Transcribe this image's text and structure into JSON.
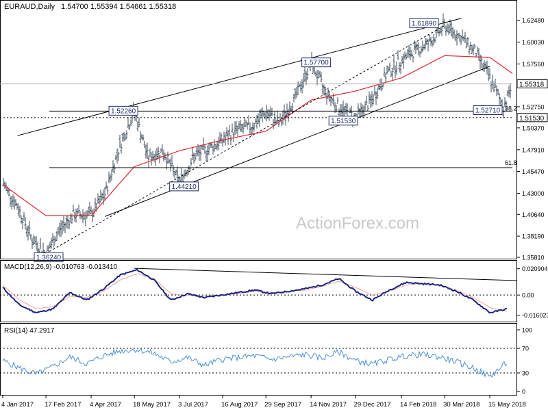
{
  "header": {
    "symbol": "EURAUD,Daily",
    "ohlc": "1.54700 1.55394 1.54661 1.55318"
  },
  "watermark": "ActionForex.com",
  "colors": {
    "bars": "#3b4b5b",
    "sma": "#e0262c",
    "macd": "#1a237e",
    "signal": "#f0a0a0",
    "rsi": "#4a8fd6",
    "trend": "#000000"
  },
  "chart_data": [
    {
      "type": "ohlc",
      "title": "EURAUD,Daily",
      "ylim": [
        1.3581,
        1.6368
      ],
      "y_ticks": [
        "1.62480",
        "1.60030",
        "1.57560",
        "1.52750",
        "1.50370",
        "1.47910",
        "1.45470",
        "1.43000",
        "1.40640",
        "1.38190",
        "1.35810"
      ],
      "price_label": "1.55318",
      "x_tick_labels": [
        "4 Jan 2017",
        "17 Feb 2017",
        "4 Apr 2017",
        "18 May 2017",
        "3 Jul 2017",
        "16 Aug 2017",
        "29 Sep 2017",
        "14 Nov 2017",
        "29 Dec 2017",
        "14 Feb 2018",
        "30 Mar 2018",
        "15 May 2018"
      ],
      "series": [
        {
          "name": "Close",
          "x": [
            "2017-01-04",
            "2017-01-19",
            "2017-02-03",
            "2017-02-17",
            "2017-03-03",
            "2017-03-17",
            "2017-04-04",
            "2017-04-18",
            "2017-05-03",
            "2017-05-18",
            "2017-06-01",
            "2017-06-16",
            "2017-07-03",
            "2017-07-18",
            "2017-08-01",
            "2017-08-16",
            "2017-08-31",
            "2017-09-14",
            "2017-09-29",
            "2017-10-13",
            "2017-10-30",
            "2017-11-14",
            "2017-11-28",
            "2017-12-13",
            "2017-12-29",
            "2018-01-15",
            "2018-01-30",
            "2018-02-14",
            "2018-02-28",
            "2018-03-15",
            "2018-03-30",
            "2018-04-16",
            "2018-04-30",
            "2018-05-15",
            "2018-05-29",
            "2018-06-07"
          ],
          "values": [
            1.4421,
            1.4154,
            1.3782,
            1.3624,
            1.389,
            1.406,
            1.4063,
            1.429,
            1.483,
            1.5226,
            1.47,
            1.478,
            1.4421,
            1.472,
            1.48,
            1.49,
            1.502,
            1.505,
            1.521,
            1.508,
            1.54,
            1.577,
            1.545,
            1.526,
            1.5153,
            1.535,
            1.565,
            1.58,
            1.59,
            1.6,
            1.6189,
            1.605,
            1.59,
            1.56,
            1.5271,
            1.5532
          ]
        },
        {
          "name": "SMA",
          "x": [
            "2017-01-04",
            "2017-02-17",
            "2017-04-04",
            "2017-05-18",
            "2017-07-03",
            "2017-08-16",
            "2017-09-29",
            "2017-11-14",
            "2017-12-29",
            "2018-02-14",
            "2018-03-30",
            "2018-05-15",
            "2018-06-07"
          ],
          "values": [
            1.44,
            1.405,
            1.405,
            1.46,
            1.478,
            1.49,
            1.5,
            1.535,
            1.545,
            1.56,
            1.585,
            1.583,
            1.565
          ]
        }
      ],
      "levels": [
        {
          "label": "1.52260",
          "value": 1.5226
        },
        {
          "label": "1.57700",
          "value": 1.577
        },
        {
          "label": "1.61890",
          "value": 1.6189
        },
        {
          "label": "1.44210",
          "value": 1.4421
        },
        {
          "label": "1.36240",
          "value": 1.3624
        },
        {
          "label": "1.51530",
          "value": 1.5153
        },
        {
          "label": "1.52710",
          "value": 1.5271
        }
      ],
      "fib_labels": [
        {
          "label": "38.2",
          "value": 1.527
        },
        {
          "label": "61.8",
          "value": 1.459
        }
      ],
      "dotted_level": {
        "label": "1.51530",
        "value": 1.5153
      }
    },
    {
      "type": "line",
      "title": "MACD(12,26,9) -0.010763 -0.013410",
      "y_ticks": [
        "0.020904",
        "0.00",
        "-0.016023"
      ],
      "ylim": [
        -0.02,
        0.024
      ],
      "series": [
        {
          "name": "MACD",
          "values": [
            0.006,
            -0.008,
            -0.014,
            -0.011,
            0.002,
            -0.004,
            0.005,
            0.016,
            0.02,
            0.012,
            -0.004,
            0.001,
            -0.002,
            0.0,
            0.002,
            0.004,
            0.001,
            0.003,
            0.005,
            0.008,
            0.013,
            0.003,
            -0.004,
            0.004,
            0.01,
            0.009,
            0.008,
            0.003,
            -0.004,
            -0.014,
            -0.011
          ]
        },
        {
          "name": "Signal",
          "values": [
            0.008,
            -0.004,
            -0.011,
            -0.009,
            -0.001,
            -0.002,
            0.003,
            0.012,
            0.017,
            0.013,
            0.001,
            0.0,
            -0.001,
            0.0,
            0.001,
            0.003,
            0.002,
            0.003,
            0.004,
            0.007,
            0.011,
            0.006,
            0.0,
            0.003,
            0.008,
            0.009,
            0.008,
            0.004,
            -0.002,
            -0.01,
            -0.013
          ]
        }
      ]
    },
    {
      "type": "line",
      "title": "RSI(14) 47.2917",
      "y_ticks": [
        "100",
        "70",
        "30",
        "0"
      ],
      "ylim": [
        0,
        100
      ],
      "series": [
        {
          "name": "RSI",
          "values": [
            50,
            38,
            28,
            40,
            56,
            45,
            58,
            66,
            68,
            62,
            48,
            55,
            42,
            52,
            55,
            58,
            52,
            56,
            60,
            54,
            64,
            50,
            44,
            52,
            58,
            60,
            56,
            48,
            38,
            24,
            47
          ]
        }
      ]
    }
  ]
}
